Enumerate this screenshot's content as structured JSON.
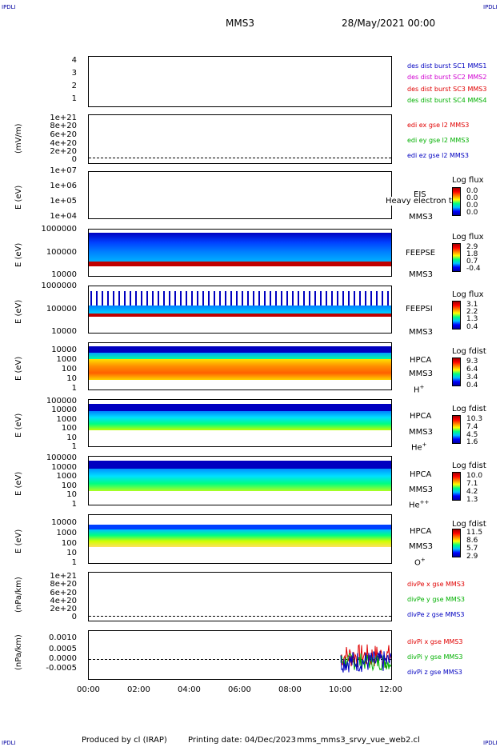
{
  "header": {
    "corner_label": "IPDLI",
    "title": "MMS3",
    "date": "28/May/2021 00:00"
  },
  "footer": {
    "produced_by": "Produced by cl (IRAP)",
    "printing_date": "Printing date: 04/Dec/2023",
    "script": "mms_mms3_srvy_vue_web2.cl"
  },
  "colors": {
    "red": "#e00000",
    "green": "#00b000",
    "blue": "#0000c0",
    "magenta": "#d000d0"
  },
  "panels": {
    "p1": {
      "yticks": [
        "4",
        "3",
        "2",
        "1"
      ],
      "legend": [
        "des dist burst SC1 MMS1",
        "des dist burst SC2 MMS2",
        "des dist burst SC3 MMS3",
        "des dist burst SC4 MMS4"
      ]
    },
    "p2": {
      "ylabel": "(mV/m)",
      "yticks": [
        "1e+21",
        "8e+20",
        "6e+20",
        "4e+20",
        "2e+20",
        "0"
      ],
      "legend": [
        "edi ex gse l2 MMS3",
        "edi ey gse l2 MMS3",
        "edi ez gse l2 MMS3"
      ]
    },
    "p3": {
      "ylabel": "E (eV)",
      "yticks": [
        "1e+07",
        "1e+06",
        "1e+05",
        "1e+04"
      ],
      "inst": "EIS",
      "overlap": "Heavy electron to",
      "sc": "MMS3",
      "cb_title": "Log flux",
      "cb_ticks": [
        "0.0",
        "0.0",
        "0.0",
        "0.0"
      ]
    },
    "p4": {
      "ylabel": "E (eV)",
      "yticks": [
        "1000000",
        "100000",
        "10000"
      ],
      "inst": "FEEPSE",
      "sc": "MMS3",
      "cb_title": "Log flux",
      "cb_ticks": [
        "2.9",
        "1.8",
        "0.7",
        "-0.4"
      ]
    },
    "p5": {
      "ylabel": "E (eV)",
      "yticks": [
        "1000000",
        "100000",
        "10000"
      ],
      "inst": "FEEPSI",
      "sc": "MMS3",
      "cb_title": "Log flux",
      "cb_ticks": [
        "3.1",
        "2.2",
        "1.3",
        "0.4"
      ]
    },
    "p6": {
      "ylabel": "E (eV)",
      "yticks": [
        "10000",
        "1000",
        "100",
        "10",
        "1"
      ],
      "inst": "HPCA",
      "sc": "MMS3",
      "ion": "H",
      "ion_sup": "+",
      "cb_title": "Log fdist",
      "cb_ticks": [
        "9.3",
        "6.4",
        "3.4",
        "0.4"
      ]
    },
    "p7": {
      "ylabel": "E (eV)",
      "yticks": [
        "100000",
        "10000",
        "1000",
        "100",
        "10",
        "1"
      ],
      "inst": "HPCA",
      "sc": "MMS3",
      "ion": "He",
      "ion_sup": "+",
      "cb_title": "Log fdist",
      "cb_ticks": [
        "10.3",
        "7.4",
        "4.5",
        "1.6"
      ]
    },
    "p8": {
      "ylabel": "E (eV)",
      "yticks": [
        "100000",
        "10000",
        "1000",
        "100",
        "10",
        "1"
      ],
      "inst": "HPCA",
      "sc": "MMS3",
      "ion": "He",
      "ion_sup": "++",
      "cb_title": "Log fdist",
      "cb_ticks": [
        "10.0",
        "7.1",
        "4.2",
        "1.3"
      ]
    },
    "p9": {
      "ylabel": "E (eV)",
      "yticks": [
        "10000",
        "1000",
        "100",
        "10",
        "1"
      ],
      "inst": "HPCA",
      "sc": "MMS3",
      "ion": "O",
      "ion_sup": "+",
      "cb_title": "Log fdist",
      "cb_ticks": [
        "11.5",
        "8.6",
        "5.7",
        "2.9"
      ]
    },
    "p10": {
      "ylabel": "(nPa/km)",
      "yticks": [
        "1e+21",
        "8e+20",
        "6e+20",
        "4e+20",
        "2e+20",
        "0"
      ],
      "legend": [
        "divPe x gse MMS3",
        "divPe y gse MMS3",
        "divPe z gse MMS3"
      ]
    },
    "p11": {
      "ylabel": "(nPa/km)",
      "yticks": [
        "0.0010",
        "0.0005",
        "0.0000",
        "-0.0005"
      ],
      "legend": [
        "divPi x gse MMS3",
        "divPi y gse MMS3",
        "divPi z gse MMS3"
      ]
    }
  },
  "xaxis": {
    "ticks": [
      "00:00",
      "02:00",
      "04:00",
      "06:00",
      "08:00",
      "10:00",
      "12:00"
    ]
  },
  "chart_data": {
    "type": "heatmap",
    "title": "MMS3",
    "subtitle": "28/May/2021 00:00",
    "x_range": [
      "00:00",
      "12:00"
    ],
    "divPi": {
      "start": "10:00",
      "end": "12:00",
      "ylim": [
        -0.0008,
        0.0014
      ],
      "series": [
        {
          "name": "divPi x gse MMS3",
          "color": "#e00000",
          "range": [
            -0.0003,
            0.0008
          ]
        },
        {
          "name": "divPi y gse MMS3",
          "color": "#00b000",
          "range": [
            -0.0004,
            0.0004
          ]
        },
        {
          "name": "divPi z gse MMS3",
          "color": "#0000c0",
          "range": [
            -0.0005,
            0.0005
          ]
        }
      ]
    }
  }
}
